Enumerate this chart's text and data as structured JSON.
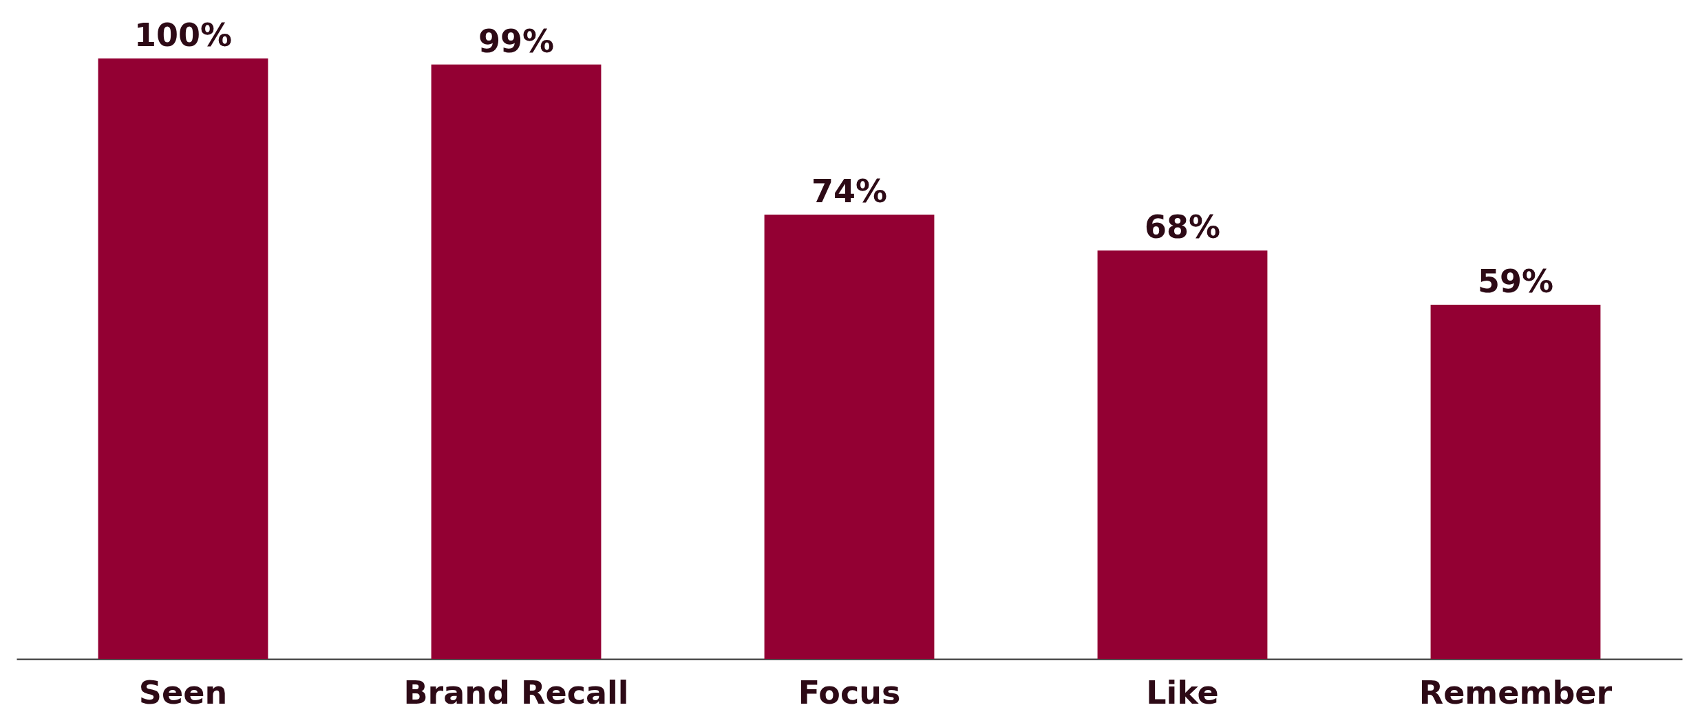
{
  "chart_data": {
    "type": "bar",
    "categories": [
      "Seen",
      "Brand Recall",
      "Focus",
      "Like",
      "Remember"
    ],
    "values": [
      100,
      99,
      74,
      68,
      59
    ],
    "value_labels": [
      "100%",
      "99%",
      "74%",
      "68%",
      "59%"
    ],
    "color": "#930033"
  }
}
